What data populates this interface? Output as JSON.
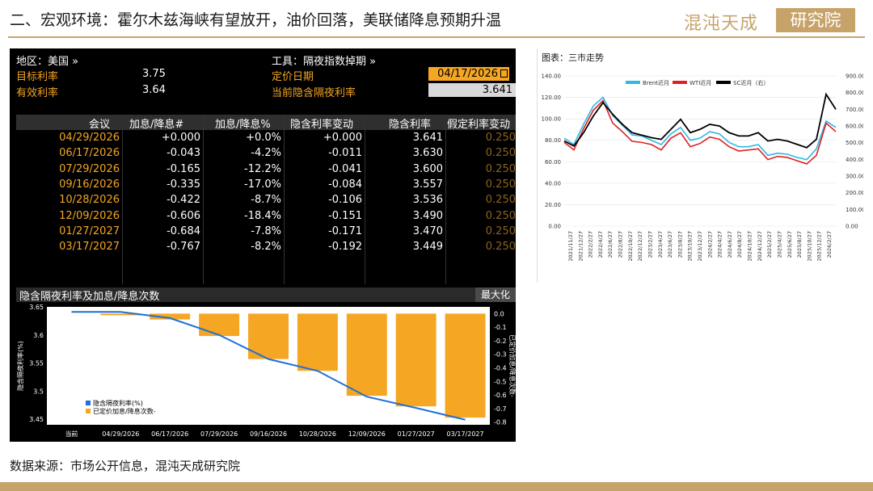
{
  "header": {
    "title": "二、宏观环境：霍尔木兹海峡有望放开，油价回落，美联储降息预期升温",
    "logo_text": "混沌天成",
    "logo_box_text": "研究院"
  },
  "terminal": {
    "region_label": "地区：美国 »",
    "tool_label": "工具：隔夜指数掉期 »",
    "target_rate_label": "目标利率",
    "target_rate_value": "3.75",
    "effective_rate_label": "有效利率",
    "effective_rate_value": "3.64",
    "pricing_date_label": "定价日期",
    "pricing_date_value": "04/17/2026",
    "implied_rate_label": "当前隐含隔夜利率",
    "implied_rate_value": "3.641",
    "columns": [
      "会议",
      "加息/降息#",
      "加息/降息%",
      "隐含利率变动",
      "隐含利率",
      "假定利率变动"
    ],
    "rows": [
      {
        "meeting": "04/29/2026",
        "hikes": "+0.000",
        "pct": "+0.0%",
        "chg": "+0.000",
        "rate": "3.641",
        "assumed": "0.250"
      },
      {
        "meeting": "06/17/2026",
        "hikes": "-0.043",
        "pct": "-4.2%",
        "chg": "-0.011",
        "rate": "3.630",
        "assumed": "0.250"
      },
      {
        "meeting": "07/29/2026",
        "hikes": "-0.165",
        "pct": "-12.2%",
        "chg": "-0.041",
        "rate": "3.600",
        "assumed": "0.250"
      },
      {
        "meeting": "09/16/2026",
        "hikes": "-0.335",
        "pct": "-17.0%",
        "chg": "-0.084",
        "rate": "3.557",
        "assumed": "0.250"
      },
      {
        "meeting": "10/28/2026",
        "hikes": "-0.422",
        "pct": "-8.7%",
        "chg": "-0.106",
        "rate": "3.536",
        "assumed": "0.250"
      },
      {
        "meeting": "12/09/2026",
        "hikes": "-0.606",
        "pct": "-18.4%",
        "chg": "-0.151",
        "rate": "3.490",
        "assumed": "0.250"
      },
      {
        "meeting": "01/27/2027",
        "hikes": "-0.684",
        "pct": "-7.8%",
        "chg": "-0.171",
        "rate": "3.470",
        "assumed": "0.250"
      },
      {
        "meeting": "03/17/2027",
        "hikes": "-0.767",
        "pct": "-8.2%",
        "chg": "-0.192",
        "rate": "3.449",
        "assumed": "0.250"
      }
    ],
    "chart_title": "隐含隔夜利率及加息/降息次数",
    "maximize_label": "最大化"
  },
  "source_text": "数据来源：市场公开信息，混沌天成研究院",
  "colors": {
    "accent_gold": "#c7a36a",
    "bloomberg_orange": "#f5a623",
    "line_blue": "#1f6fd6",
    "brent": "#2eb8e6",
    "wti": "#e02020",
    "sc": "#000000"
  },
  "chart_data": [
    {
      "type": "bar",
      "title": "隐含隔夜利率及加息/降息次数",
      "categories": [
        "当前",
        "04/29/2026",
        "06/17/2026",
        "07/29/2026",
        "09/16/2026",
        "10/28/2026",
        "12/09/2026",
        "01/27/2027",
        "03/17/2027"
      ],
      "ylabel": "隐含隔夜利率(%)",
      "y2label": "已定价加息/降息次数-",
      "ylim": [
        3.44,
        3.65
      ],
      "y_ticks": [
        "3.65",
        "3.6",
        "3.55",
        "3.5",
        "3.45"
      ],
      "y2lim": [
        -0.82,
        0.05
      ],
      "y2_ticks": [
        "0.0",
        "-0.1",
        "-0.2",
        "-0.3",
        "-0.4",
        "-0.5",
        "-0.6",
        "-0.7",
        "-0.8"
      ],
      "series": [
        {
          "name": "隐含隔夜利率(%)",
          "type": "line",
          "values": [
            3.641,
            3.641,
            3.63,
            3.6,
            3.557,
            3.536,
            3.49,
            3.47,
            3.449
          ]
        },
        {
          "name": "已定价加息/降息次数-",
          "type": "bar",
          "axis": "right",
          "values": [
            null,
            0.0,
            -0.043,
            -0.165,
            -0.335,
            -0.422,
            -0.606,
            -0.684,
            -0.767
          ]
        }
      ],
      "legend": "bottom-left"
    },
    {
      "type": "line",
      "title": "图表：三市走势",
      "ylim": [
        0,
        140
      ],
      "y_ticks": [
        "140.00",
        "120.00",
        "100.00",
        "80.00",
        "60.00",
        "40.00",
        "20.00",
        "0.00"
      ],
      "y2lim": [
        0,
        900
      ],
      "y2_ticks": [
        "900.00",
        "800.00",
        "700.00",
        "600.00",
        "500.00",
        "400.00",
        "300.00",
        "200.00",
        "100.00",
        "0.00"
      ],
      "x_ticks": [
        "2021/11/27",
        "2021/12/27",
        "2022/2/27",
        "2022/4/27",
        "2022/6/27",
        "2022/8/27",
        "2022/10/27",
        "2022/12/27",
        "2023/2/27",
        "2023/4/27",
        "2023/6/27",
        "2023/8/27",
        "2023/10/27",
        "2023/12/27",
        "2024/2/27",
        "2024/4/27",
        "2024/6/27",
        "2024/8/27",
        "2024/10/27",
        "2024/12/27",
        "2025/2/27",
        "2025/4/27",
        "2025/6/27",
        "2025/8/27",
        "2025/10/27",
        "2025/12/27",
        "2026/2/27"
      ],
      "series": [
        {
          "name": "Brent近月",
          "values": [
            82,
            76,
            95,
            112,
            120,
            103,
            94,
            85,
            84,
            80,
            76,
            86,
            92,
            80,
            82,
            88,
            86,
            78,
            74,
            74,
            76,
            66,
            68,
            67,
            64,
            62,
            72,
            98,
            92
          ]
        },
        {
          "name": "WTI近月",
          "values": [
            78,
            71,
            91,
            108,
            117,
            96,
            88,
            79,
            78,
            76,
            71,
            82,
            87,
            74,
            77,
            83,
            81,
            74,
            70,
            71,
            72,
            62,
            65,
            64,
            61,
            58,
            66,
            96,
            88
          ]
        },
        {
          "name": "SC近月（右）",
          "values": [
            510,
            480,
            560,
            660,
            740,
            670,
            610,
            560,
            545,
            530,
            520,
            580,
            640,
            560,
            580,
            610,
            600,
            560,
            540,
            540,
            560,
            510,
            520,
            510,
            490,
            470,
            520,
            790,
            700
          ]
        }
      ],
      "legend": "top-center"
    }
  ]
}
